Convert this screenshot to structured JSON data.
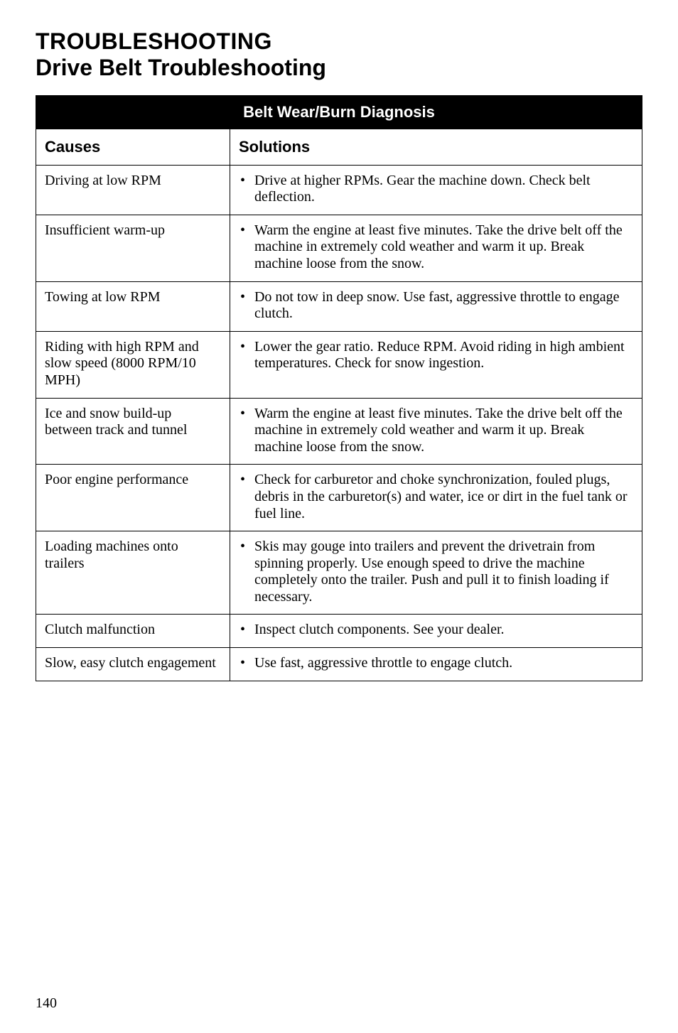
{
  "heading": {
    "main": "TROUBLESHOOTING",
    "sub": "Drive Belt Troubleshooting"
  },
  "table": {
    "banner": "Belt Wear/Burn Diagnosis",
    "col_causes": "Causes",
    "col_solutions": "Solutions",
    "rows": [
      {
        "cause": "Driving at low RPM",
        "solution": "Drive at higher RPMs. Gear the machine down. Check belt deflection."
      },
      {
        "cause": "Insufficient warm-up",
        "solution": "Warm the engine at least five minutes. Take the drive belt off the machine in extremely cold weather and warm it up. Break machine loose from the snow."
      },
      {
        "cause": "Towing at low RPM",
        "solution": "Do not tow in deep snow. Use fast, aggressive throttle to engage clutch."
      },
      {
        "cause": "Riding with high RPM and slow speed (8000 RPM/10 MPH)",
        "solution": "Lower the gear ratio.  Reduce RPM.  Avoid riding in high ambient temperatures. Check for snow ingestion."
      },
      {
        "cause": "Ice and snow build-up between track and tunnel",
        "solution": "Warm the engine at least five minutes. Take the drive belt off the machine in extremely cold weather and warm it up. Break machine loose from the snow."
      },
      {
        "cause": "Poor engine performance",
        "solution": "Check for carburetor and choke synchronization, fouled plugs, debris in the carburetor(s) and water, ice or dirt in the fuel tank or fuel line."
      },
      {
        "cause": "Loading machines onto trailers",
        "solution": "Skis may gouge into trailers and prevent the drivetrain from spinning properly.  Use enough speed to drive the machine completely onto the trailer.  Push and pull it to finish loading if necessary."
      },
      {
        "cause": "Clutch malfunction",
        "solution": "Inspect clutch components.  See your dealer."
      },
      {
        "cause": "Slow, easy clutch engagement",
        "solution": "Use fast, aggressive throttle to engage clutch."
      }
    ]
  },
  "page_number": "140"
}
